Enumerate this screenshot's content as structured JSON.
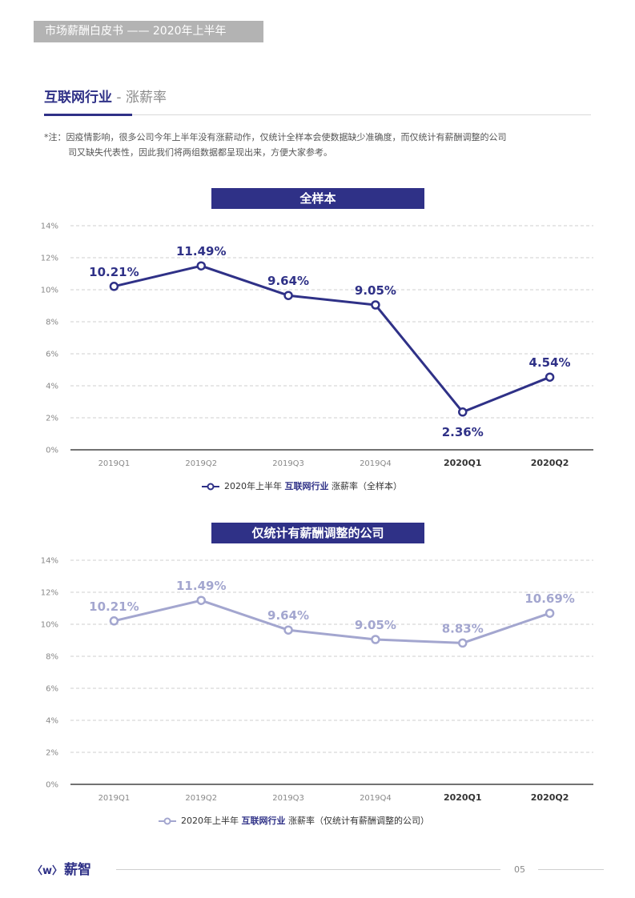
{
  "header": {
    "band_text": "市场薪酬白皮书 —— 2020年上半年"
  },
  "section": {
    "title": "互联网行业",
    "subtitle": " - 涨薪率"
  },
  "note": {
    "line1": "*注：因疫情影响，很多公司今年上半年没有涨薪动作，仅统计全样本会使数据缺少准确度，而仅统计有薪酬调整的公司",
    "line2": "司又缺失代表性，因此我们将两组数据都呈现出来，方便大家参考。"
  },
  "footer": {
    "logo_text": "薪智",
    "page_number": "05"
  },
  "legends": [
    {
      "prefix": "2020年上半年 ",
      "bold": "互联网行业",
      "suffix": " 涨薪率（全样本）"
    },
    {
      "prefix": "2020年上半年 ",
      "bold": "互联网行业",
      "suffix": " 涨薪率（仅统计有薪酬调整的公司）"
    }
  ],
  "chart_data": [
    {
      "type": "line",
      "title": "全样本",
      "categories": [
        "2019Q1",
        "2019Q2",
        "2019Q3",
        "2019Q4",
        "2020Q1",
        "2020Q2"
      ],
      "values": [
        10.21,
        11.49,
        9.64,
        9.05,
        2.36,
        4.54
      ],
      "data_labels": [
        "10.21%",
        "11.49%",
        "9.64%",
        "9.05%",
        "2.36%",
        "4.54%"
      ],
      "yticks": [
        "0%",
        "2%",
        "4%",
        "6%",
        "8%",
        "10%",
        "12%",
        "14%"
      ],
      "ylim": [
        0,
        14
      ],
      "grid": true,
      "color": "#2f3187",
      "bold_categories": [
        "2020Q1",
        "2020Q2"
      ]
    },
    {
      "type": "line",
      "title": "仅统计有薪酬调整的公司",
      "categories": [
        "2019Q1",
        "2019Q2",
        "2019Q3",
        "2019Q4",
        "2020Q1",
        "2020Q2"
      ],
      "values": [
        10.21,
        11.49,
        9.64,
        9.05,
        8.83,
        10.69
      ],
      "data_labels": [
        "10.21%",
        "11.49%",
        "9.64%",
        "9.05%",
        "8.83%",
        "10.69%"
      ],
      "yticks": [
        "0%",
        "2%",
        "4%",
        "6%",
        "8%",
        "10%",
        "12%",
        "14%"
      ],
      "ylim": [
        0,
        14
      ],
      "grid": true,
      "color": "#a3a6cf",
      "bold_categories": [
        "2020Q1",
        "2020Q2"
      ]
    }
  ]
}
